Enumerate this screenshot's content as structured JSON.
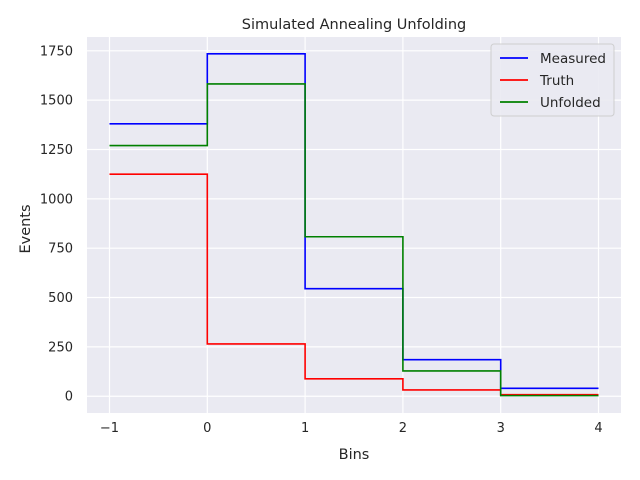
{
  "chart_data": {
    "type": "line",
    "title": "Simulated Annealing Unfolding",
    "xlabel": "Bins",
    "ylabel": "Events",
    "xlim": [
      -1.23,
      4.23
    ],
    "ylim": [
      -85,
      1820
    ],
    "x_ticks": [
      -1,
      0,
      1,
      2,
      3,
      4
    ],
    "x_tick_labels": [
      "−1",
      "0",
      "1",
      "2",
      "3",
      "4"
    ],
    "y_ticks": [
      0,
      250,
      500,
      750,
      1000,
      1250,
      1500,
      1750
    ],
    "y_tick_labels": [
      "0",
      "250",
      "500",
      "750",
      "1000",
      "1250",
      "1500",
      "1750"
    ],
    "grid": true,
    "legend_position": "top-right",
    "step_style": "post",
    "x": [
      -1,
      0,
      1,
      2,
      3,
      4
    ],
    "series": [
      {
        "name": "Measured",
        "color": "#0000ff",
        "values": [
          1380,
          1735,
          545,
          185,
          40,
          40
        ]
      },
      {
        "name": "Truth",
        "color": "#ff0000",
        "values": [
          1125,
          265,
          88,
          32,
          8,
          8
        ]
      },
      {
        "name": "Unfolded",
        "color": "#008000",
        "values": [
          1270,
          1582,
          808,
          128,
          3,
          3
        ]
      }
    ]
  }
}
